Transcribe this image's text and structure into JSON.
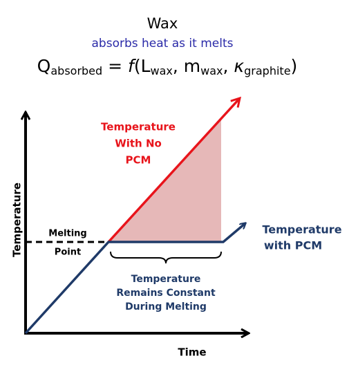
{
  "header": {
    "title": "Wax",
    "subtitle": "absorbs heat as it melts",
    "equation": [
      "Q",
      "absorbed",
      " = ",
      "f",
      "(L",
      "wax",
      ", m",
      "wax",
      ", ",
      "κ",
      "graphite",
      ")"
    ]
  },
  "labels": {
    "no_pcm": [
      "Temperature",
      "With No",
      "PCM"
    ],
    "melting_point": [
      "Melting",
      "Point"
    ],
    "with_pcm": [
      "Temperature",
      "with PCM"
    ],
    "constant": [
      "Temperature",
      "Remains Constant",
      "During Melting"
    ],
    "y_axis": "Temperature",
    "x_axis": "Time"
  }
}
